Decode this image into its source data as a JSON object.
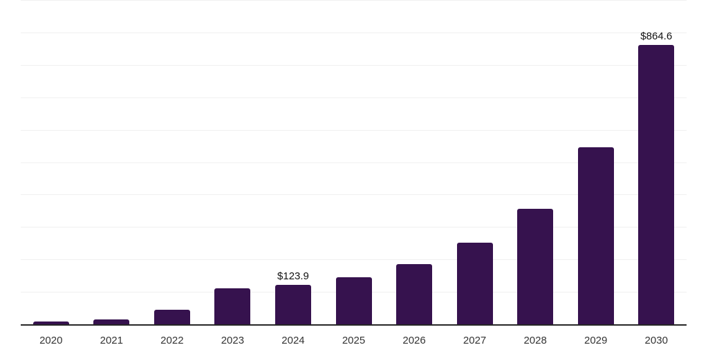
{
  "chart_data": {
    "type": "bar",
    "title": "",
    "xlabel": "",
    "ylabel": "",
    "categories": [
      "2020",
      "2021",
      "2022",
      "2023",
      "2024",
      "2025",
      "2026",
      "2027",
      "2028",
      "2029",
      "2030"
    ],
    "values": [
      10,
      18,
      46,
      114,
      123.9,
      148,
      187,
      253,
      359,
      547,
      864.6
    ],
    "data_labels": [
      "",
      "",
      "",
      "",
      "$123.9",
      "",
      "",
      "",
      "",
      "",
      "$864.6"
    ],
    "ylim": [
      0,
      1000
    ],
    "gridline_step": 100,
    "grid": true,
    "legend_position": "none",
    "y_axis_labels_visible": false
  },
  "colors": {
    "bar": "#36124e",
    "axis_line": "#262626",
    "gridline": "#f0f0f0",
    "tick_label": "#333333",
    "data_label": "#111111",
    "background": "#ffffff"
  }
}
